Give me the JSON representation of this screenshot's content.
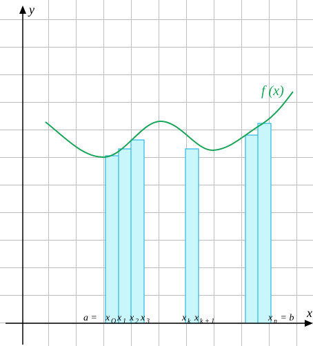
{
  "axes": {
    "y_label": "y",
    "x_label": "x"
  },
  "curve": {
    "label": "f (x)",
    "color": "#1aa55a"
  },
  "bars": {
    "fill": "#c9f6fb",
    "stroke": "#2bb6df"
  },
  "tick_labels": {
    "a_eq": "a = ",
    "x0": "x",
    "x0_sub": "O",
    "x1": "x",
    "x1_sub": "1",
    "x2": "x",
    "x2_sub": "2",
    "x3": "x",
    "x3_sub": "3",
    "xk": "x",
    "xk_sub": "k",
    "xk1": "x",
    "xk1_sub": "k + 1",
    "xn": "x",
    "xn_sub": "n",
    "eq_b": " = b"
  },
  "colors": {
    "grid": "#bdbdbd",
    "axis": "#000000",
    "background": "#ffffff"
  }
}
